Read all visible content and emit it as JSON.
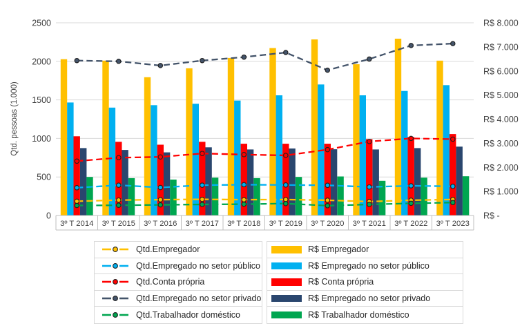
{
  "chart_data": {
    "type": "combo-bar-line",
    "title": "",
    "categories": [
      "3º T 2014",
      "3º T 2015",
      "3º T 2016",
      "3º T 2017",
      "3º T 2018",
      "3º T 2019",
      "3º T 2020",
      "3º T 2021",
      "3º T 2022",
      "3º T 2023"
    ],
    "left_axis": {
      "title": "Qtd. pessoas (1.000)",
      "min": 0,
      "max": 2500,
      "ticks": [
        "0",
        "500",
        "1000",
        "1500",
        "2000",
        "2500"
      ]
    },
    "right_axis": {
      "min": 0,
      "max": 8000,
      "ticks": [
        "R$ -",
        "R$ 1.000",
        "R$ 2.000",
        "R$ 3.000",
        "R$ 4.000",
        "R$ 5.000",
        "R$ 6.000",
        "R$ 7.000",
        "R$ 8.000"
      ]
    },
    "grid": true,
    "legend_position": "bottom-two-columns",
    "bar_series": [
      {
        "name": "R$ Empregador",
        "color": "#FFC000",
        "axis": "right",
        "values": [
          6490,
          6430,
          5740,
          6110,
          6540,
          6950,
          7310,
          6280,
          7340,
          6430
        ]
      },
      {
        "name": "R$ Empregado no setor público",
        "color": "#00B0F0",
        "axis": "right",
        "values": [
          4690,
          4480,
          4580,
          4640,
          4770,
          4990,
          5440,
          4990,
          5170,
          5410
        ]
      },
      {
        "name": "R$ Conta própria",
        "color": "#FF0000",
        "axis": "right",
        "values": [
          3290,
          3060,
          2940,
          3060,
          2980,
          2980,
          2980,
          3170,
          3260,
          3380
        ]
      },
      {
        "name": "R$ Empregado no setor privado",
        "color": "#2A466E",
        "axis": "right",
        "values": [
          2800,
          2720,
          2620,
          2830,
          2740,
          2780,
          2750,
          2740,
          2800,
          2860
        ]
      },
      {
        "name": "R$ Trabalhador doméstico",
        "color": "#00A650",
        "axis": "right",
        "values": [
          1600,
          1550,
          1490,
          1570,
          1550,
          1600,
          1620,
          1440,
          1570,
          1630
        ]
      }
    ],
    "line_series": [
      {
        "name": "Qtd.Empregador",
        "color": "#FFC000",
        "axis": "left",
        "values": [
          185,
          200,
          205,
          210,
          205,
          207,
          198,
          180,
          198,
          208
        ]
      },
      {
        "name": "Qtd.Empregado no setor público",
        "color": "#00B0F0",
        "axis": "left",
        "values": [
          360,
          393,
          363,
          393,
          400,
          396,
          392,
          370,
          385,
          378
        ]
      },
      {
        "name": "Qtd.Conta própria",
        "color": "#FF0000",
        "axis": "left",
        "values": [
          705,
          750,
          760,
          805,
          790,
          780,
          855,
          960,
          1000,
          990
        ]
      },
      {
        "name": "Qtd.Empregado no setor privado",
        "color": "#44546A",
        "axis": "left",
        "values": [
          2010,
          2000,
          1945,
          2010,
          2055,
          2115,
          1885,
          2030,
          2205,
          2230
        ]
      },
      {
        "name": "Qtd.Trabalhador doméstico",
        "color": "#00A650",
        "axis": "left",
        "values": [
          130,
          133,
          138,
          143,
          147,
          155,
          127,
          143,
          158,
          168
        ]
      }
    ]
  },
  "styles": {
    "grid_color": "#D9D9D9",
    "axis_line_color": "#BFBFBF",
    "tick_text_color": "#404040",
    "legend_text_color": "#262626",
    "marker_outline_color": "#1F1F1F",
    "legend_border_color": "#D9D9D9",
    "background_color": "#FFFFFF"
  }
}
